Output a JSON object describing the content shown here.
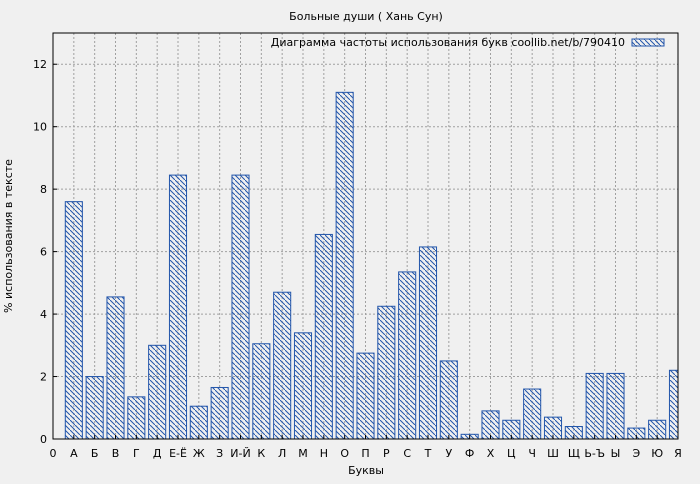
{
  "colors": {
    "background": "#f0f0f0",
    "bar_stroke": "#2255aa",
    "hatch": "#2255aa",
    "grid": "#a0a0a0",
    "axis": "#000000"
  },
  "chart_data": {
    "type": "bar",
    "title": "Больные души ( Хань Сун)",
    "xlabel": "Буквы",
    "ylabel": "% использования в тексте",
    "legend": {
      "label": "Диаграмма частоты использования букв coollib.net/b/790410",
      "placement": "top-right"
    },
    "ylim": [
      0,
      13
    ],
    "yticks": [
      0,
      2,
      4,
      6,
      8,
      10,
      12
    ],
    "x_origin_label": "0",
    "grid": true,
    "hatch": "diagonal",
    "categories": [
      "А",
      "Б",
      "В",
      "Г",
      "Д",
      "Е-Ё",
      "Ж",
      "З",
      "И-Й",
      "К",
      "Л",
      "М",
      "Н",
      "О",
      "П",
      "Р",
      "С",
      "Т",
      "У",
      "Ф",
      "Х",
      "Ц",
      "Ч",
      "Ш",
      "Щ",
      "Ь-Ъ",
      "Ы",
      "Э",
      "Ю",
      "Я"
    ],
    "values": [
      7.6,
      2.0,
      4.55,
      1.35,
      3.0,
      8.45,
      1.05,
      1.65,
      8.45,
      3.05,
      4.7,
      3.4,
      6.55,
      11.1,
      2.75,
      4.25,
      5.35,
      6.15,
      2.5,
      0.15,
      0.9,
      0.6,
      1.6,
      0.7,
      0.4,
      2.1,
      2.1,
      0.35,
      0.6,
      2.2
    ]
  }
}
